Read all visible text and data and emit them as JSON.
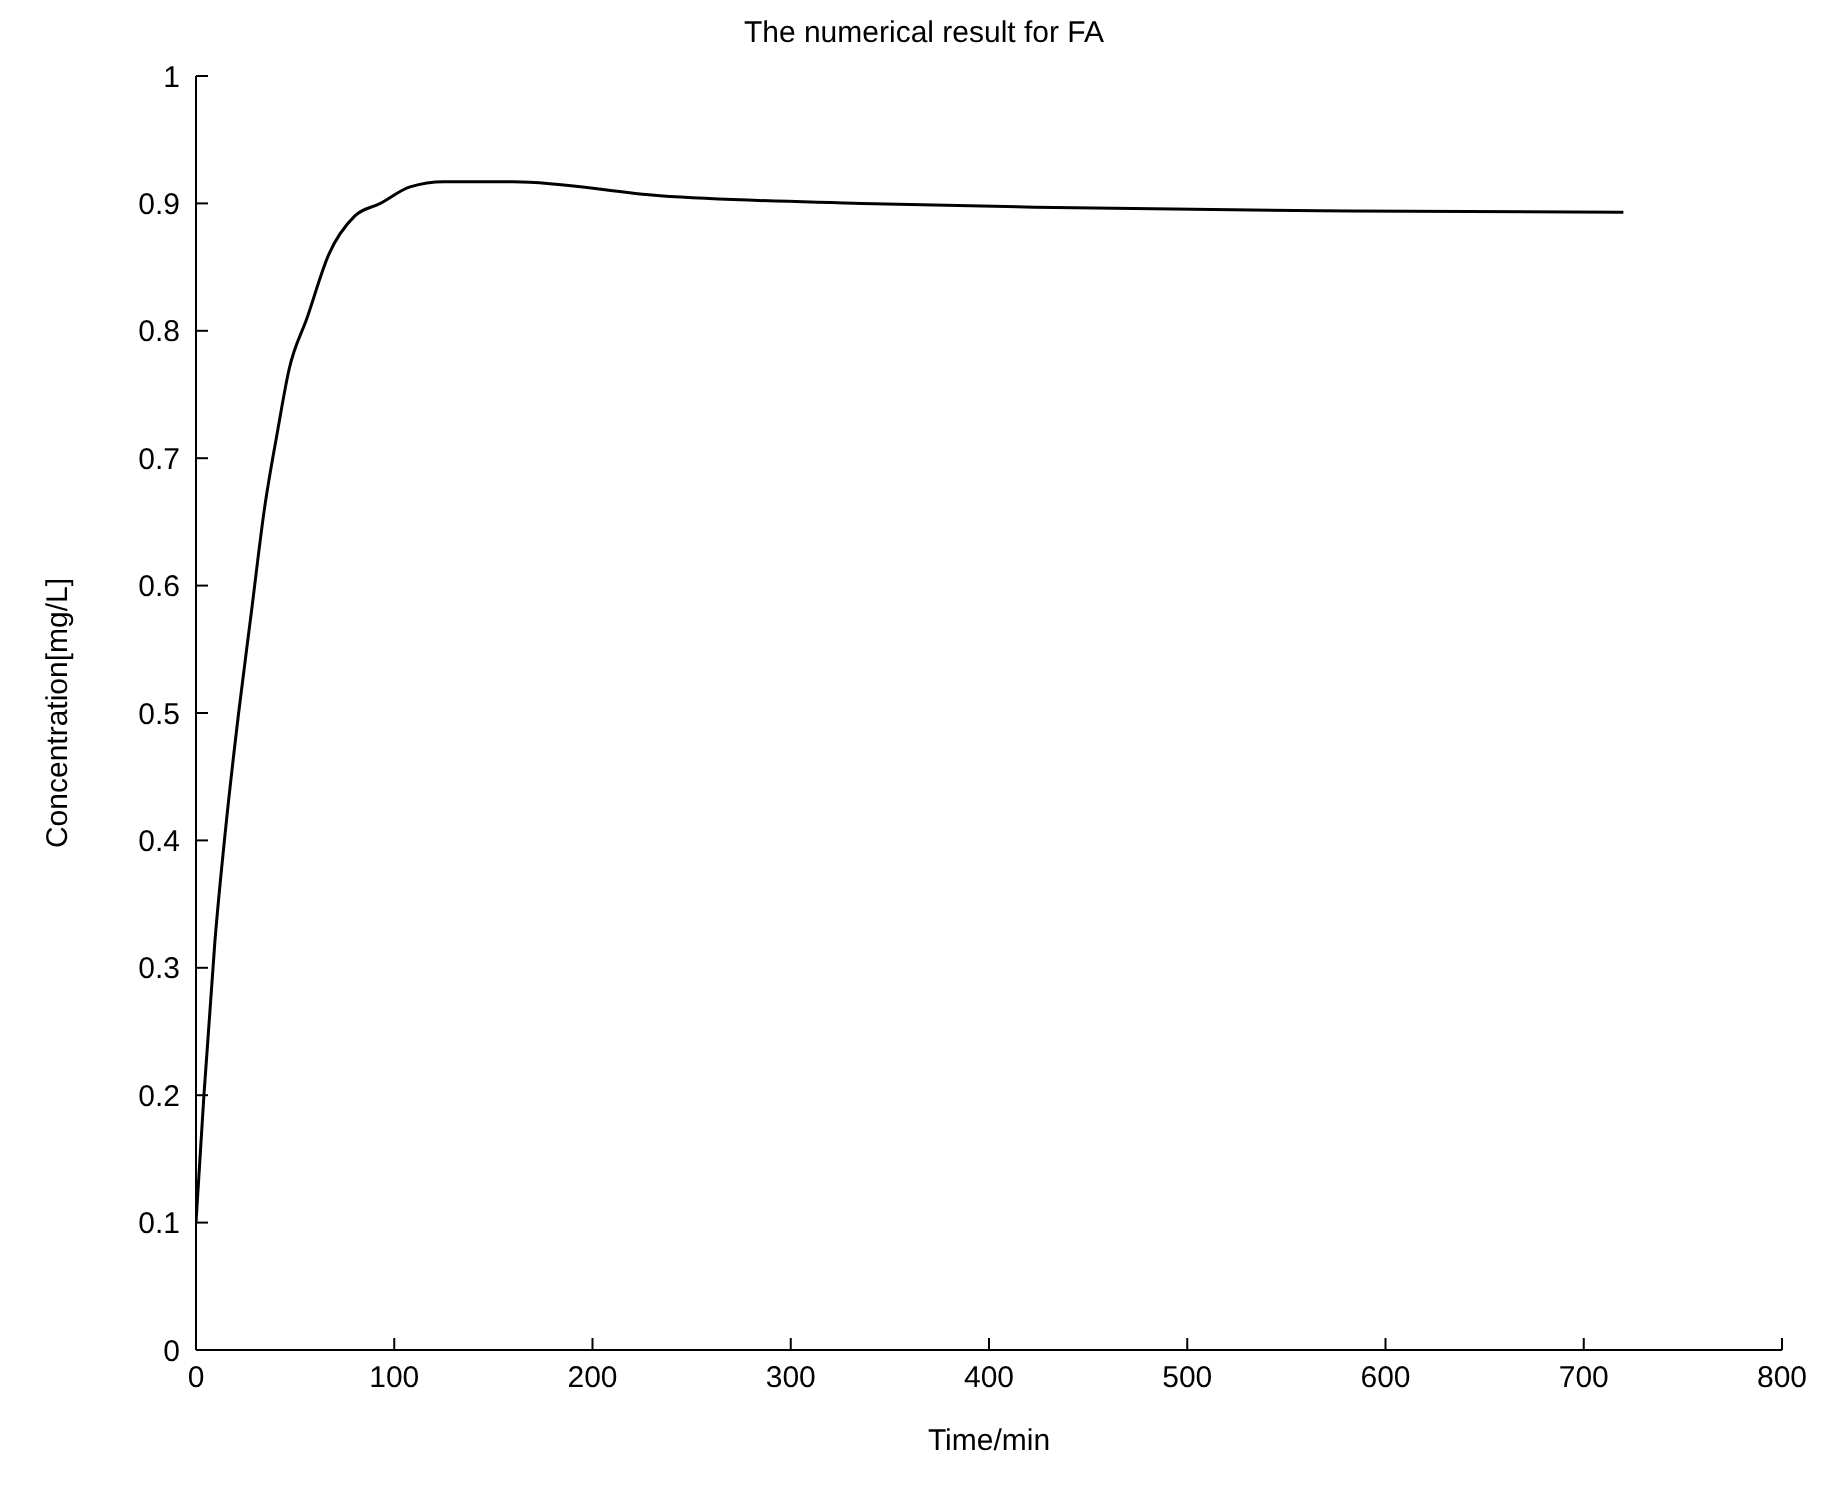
{
  "chart_data": {
    "type": "line",
    "title": "The numerical result for FA",
    "xlabel": "Time/min",
    "ylabel": "Concentration[mg/L]",
    "x": [
      0,
      4,
      9.5,
      15,
      21.5,
      28,
      34.5,
      41,
      47,
      56,
      67,
      80,
      93,
      108,
      125,
      160,
      234,
      336,
      423,
      582,
      720
    ],
    "series": [
      {
        "color": "#000000",
        "values": [
          0.1,
          0.2,
          0.32,
          0.41,
          0.5,
          0.58,
          0.66,
          0.72,
          0.77,
          0.81,
          0.86,
          0.89,
          0.9,
          0.913,
          0.917,
          0.917,
          0.906,
          0.9,
          0.897,
          0.894,
          0.893
        ]
      }
    ],
    "xlim": [
      0,
      800
    ],
    "xticks": [
      0,
      100,
      200,
      300,
      400,
      500,
      600,
      700,
      800
    ],
    "ylim": [
      0,
      1
    ],
    "yticks": [
      0,
      0.1,
      0.2,
      0.3,
      0.4,
      0.5,
      0.6,
      0.7,
      0.8,
      0.9,
      1
    ],
    "grid": false,
    "marker": "none",
    "line_style": "solid"
  }
}
